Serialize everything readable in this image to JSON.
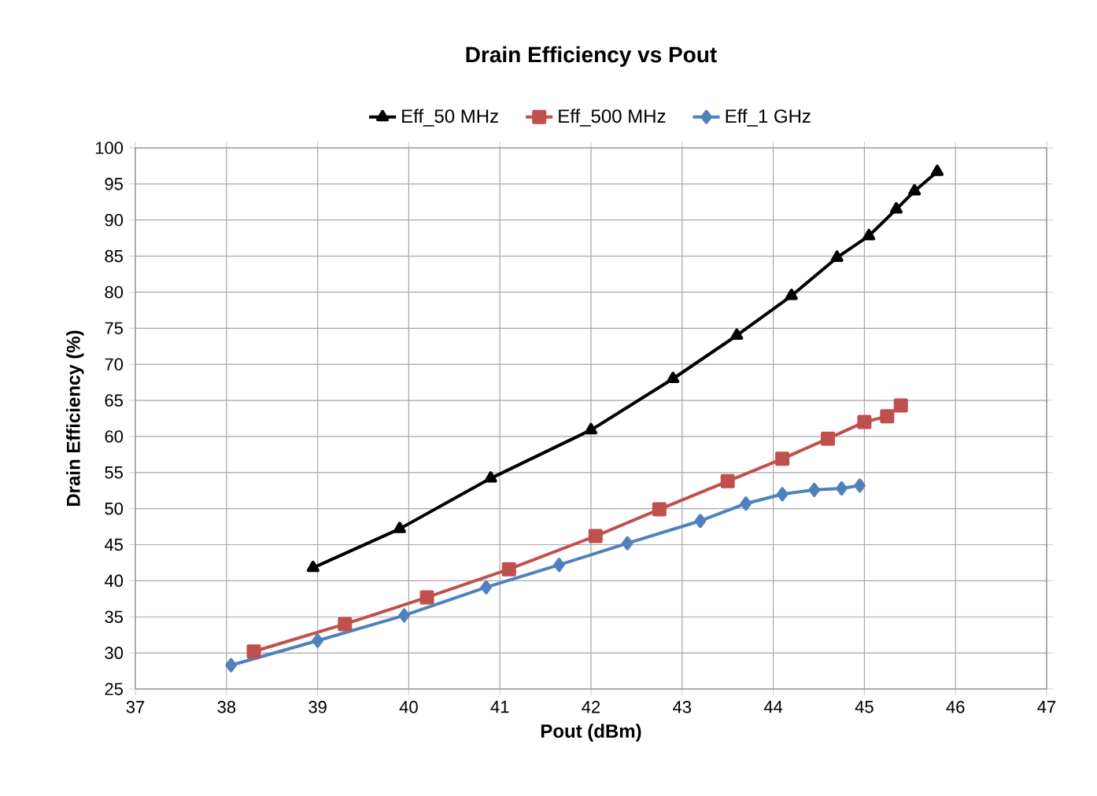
{
  "chart_data": {
    "type": "line",
    "title": "Drain Efficiency vs Pout",
    "xlabel": "Pout (dBm)",
    "ylabel": "Drain  Efficiency (%)",
    "xlim": [
      37,
      47
    ],
    "xticks": [
      37,
      38,
      39,
      40,
      41,
      42,
      43,
      44,
      45,
      46,
      47
    ],
    "ylim": [
      25,
      100
    ],
    "yticks": [
      25,
      30,
      35,
      40,
      45,
      50,
      55,
      60,
      65,
      70,
      75,
      80,
      85,
      90,
      95,
      100
    ],
    "grid": true,
    "legend": "top",
    "line_style": "solid",
    "series": [
      {
        "name": "Eff_50 MHz",
        "color": "#000000",
        "marker": "triangle",
        "x": [
          38.95,
          39.9,
          40.9,
          42.0,
          42.9,
          43.6,
          44.2,
          44.7,
          45.05,
          45.35,
          45.55,
          45.8
        ],
        "values": [
          41.8,
          47.2,
          54.2,
          60.9,
          68.0,
          74.0,
          79.5,
          84.8,
          87.8,
          91.5,
          94.0,
          96.7
        ]
      },
      {
        "name": "Eff_500 MHz",
        "color": "#c0504d",
        "marker": "square",
        "x": [
          38.3,
          39.3,
          40.2,
          41.1,
          42.05,
          42.75,
          43.5,
          44.1,
          44.6,
          45.0,
          45.25,
          45.4
        ],
        "values": [
          30.2,
          34.0,
          37.7,
          41.6,
          46.2,
          49.9,
          53.8,
          56.9,
          59.7,
          62.0,
          62.8,
          64.3
        ]
      },
      {
        "name": "Eff_1 GHz",
        "color": "#4f81bd",
        "marker": "diamond",
        "x": [
          38.05,
          39.0,
          39.95,
          40.85,
          41.65,
          42.4,
          43.2,
          43.7,
          44.1,
          44.45,
          44.75,
          44.95
        ],
        "values": [
          28.3,
          31.7,
          35.2,
          39.1,
          42.2,
          45.2,
          48.3,
          50.7,
          52.0,
          52.6,
          52.8,
          53.2
        ]
      }
    ]
  }
}
